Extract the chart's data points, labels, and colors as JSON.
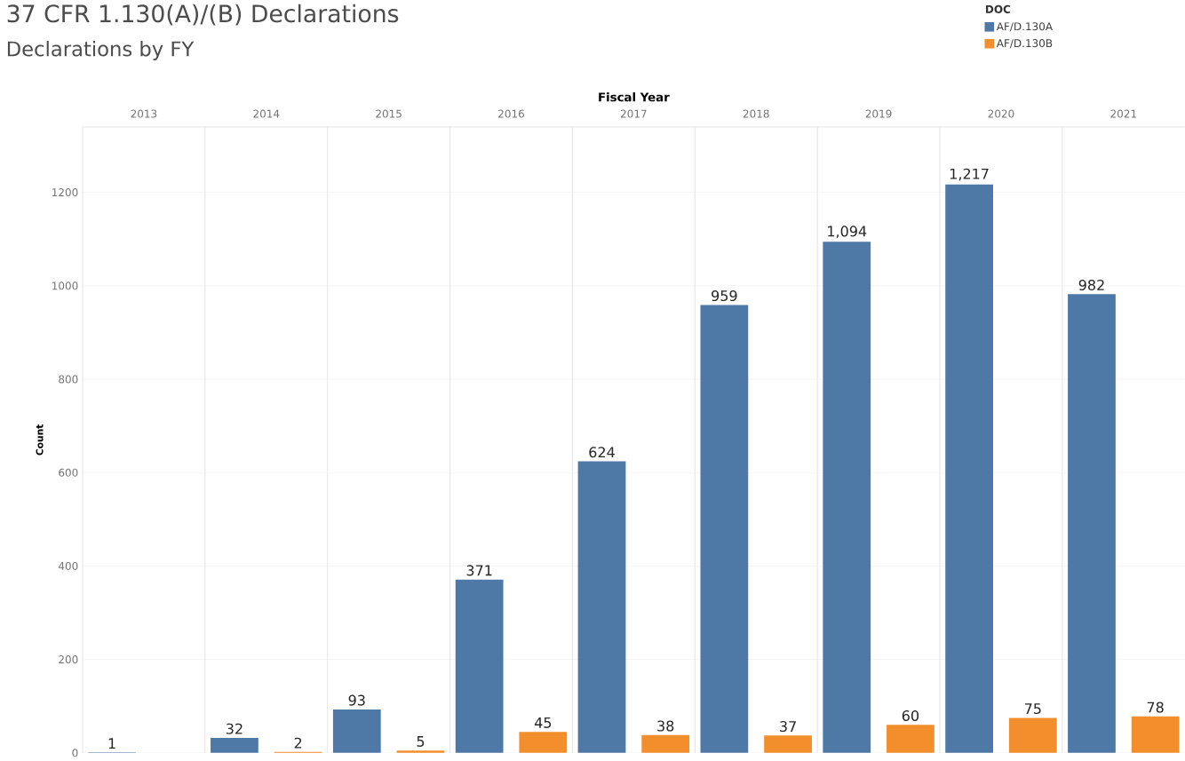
{
  "chart_data": {
    "type": "bar",
    "title": "37 CFR 1.130(A)/(B) Declarations",
    "subtitle": "Declarations by FY",
    "xlabel": "Fiscal Year",
    "ylabel": "Count",
    "legend_title": "DOC",
    "categories": [
      "2013",
      "2014",
      "2015",
      "2016",
      "2017",
      "2018",
      "2019",
      "2020",
      "2021"
    ],
    "series": [
      {
        "name": "AF/D.130A",
        "color": "#4e79a7",
        "values": [
          1,
          32,
          93,
          371,
          624,
          959,
          1094,
          1217,
          982
        ],
        "value_labels": [
          "1",
          "32",
          "93",
          "371",
          "624",
          "959",
          "1,094",
          "1,217",
          "982"
        ]
      },
      {
        "name": "AF/D.130B",
        "color": "#f28e2b",
        "values": [
          null,
          2,
          5,
          45,
          38,
          37,
          60,
          75,
          78
        ],
        "value_labels": [
          null,
          "2",
          "5",
          "45",
          "38",
          "37",
          "60",
          "75",
          "78"
        ]
      }
    ],
    "ylim": [
      0,
      1340
    ],
    "yticks": [
      0,
      200,
      400,
      600,
      800,
      1000,
      1200
    ],
    "grid": true,
    "legend": "top right"
  }
}
